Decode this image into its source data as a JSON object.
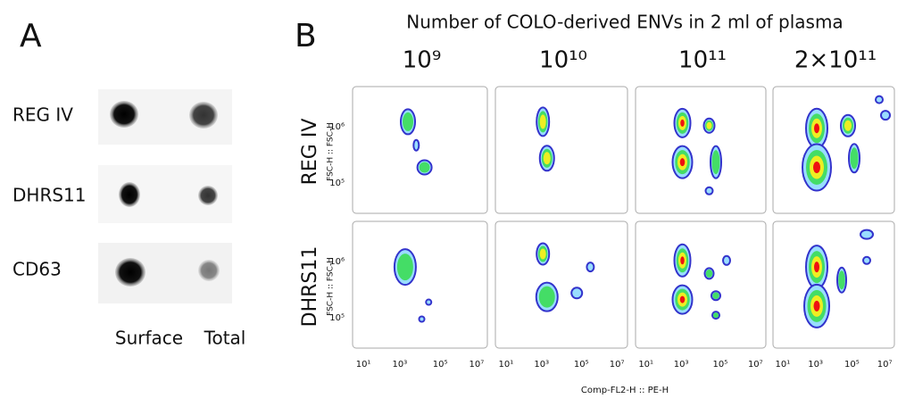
{
  "panel_a": {
    "label": "A",
    "rows": [
      "REG IV",
      "DHRS11",
      "CD63"
    ],
    "columns": [
      "Surface",
      "Total"
    ]
  },
  "panel_b": {
    "label": "B",
    "title": "Number of COLO-derived ENVs in 2 ml of plasma",
    "columns": [
      "10⁹",
      "10¹⁰",
      "10¹¹",
      "2×10¹¹"
    ],
    "rows": [
      "REG IV",
      "DHRS11"
    ],
    "y_axis_label": "FSC-H :: FSC-H",
    "y_ticks": [
      "10⁶",
      "10⁵"
    ],
    "x_ticks": [
      "10¹",
      "10³",
      "10⁵",
      "10⁷"
    ],
    "x_axis_label": "Comp-FL2-H :: PE-H"
  }
}
